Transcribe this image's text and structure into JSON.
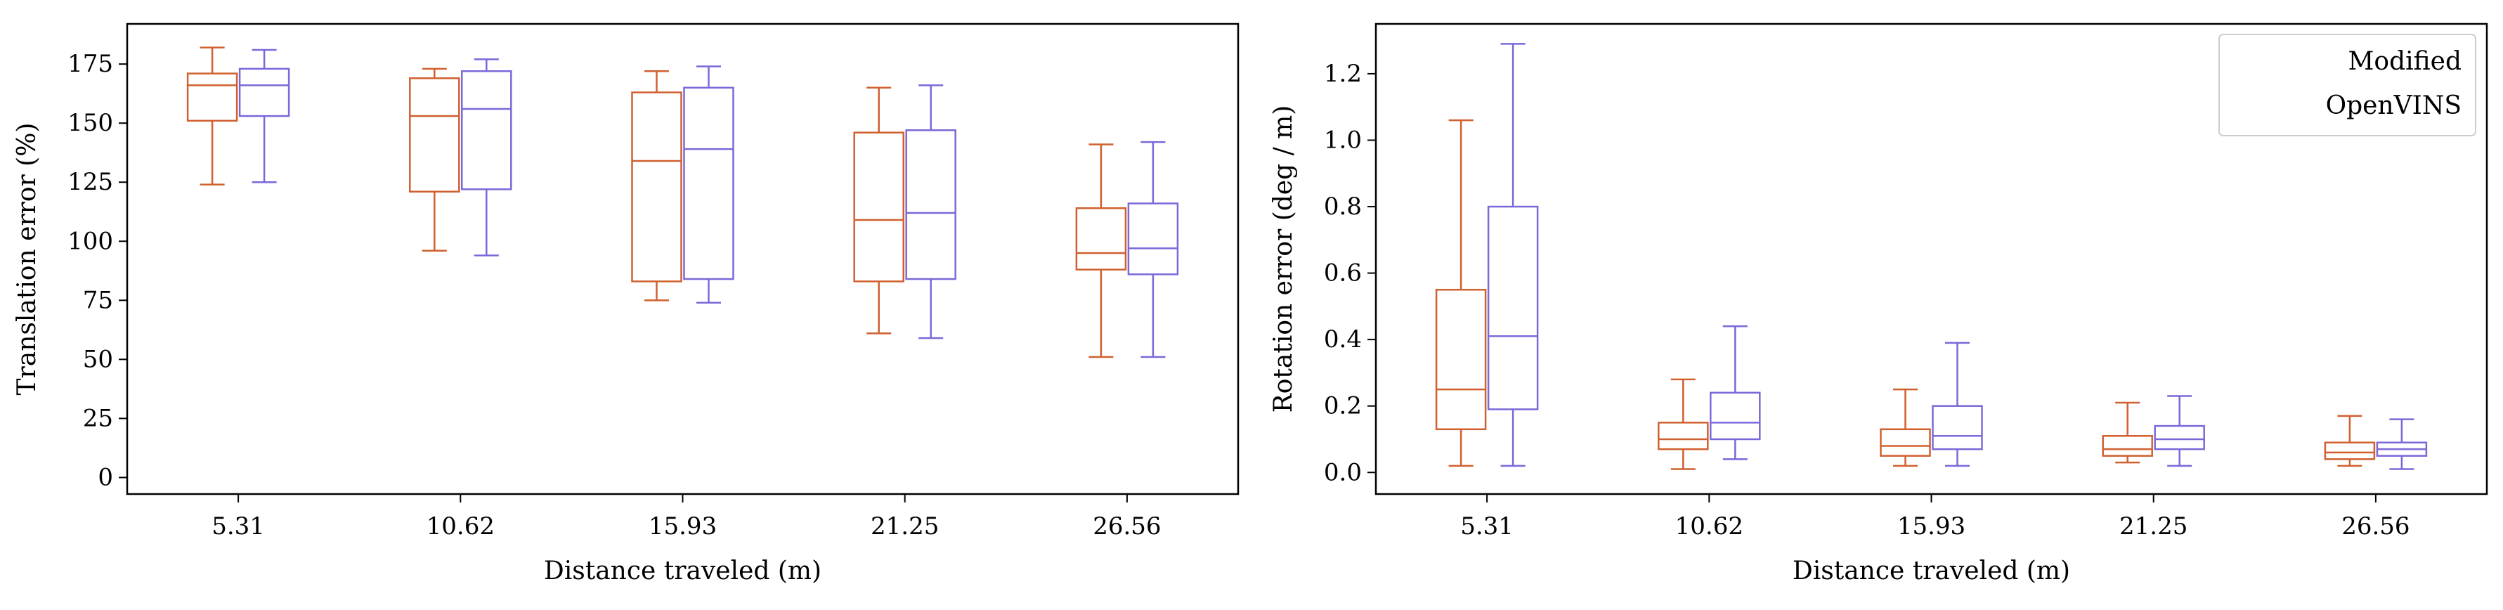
{
  "colors": {
    "modified": "#d0602f",
    "openvins": "#7b68d9",
    "axis": "#000000",
    "legend_border": "#cccccc"
  },
  "chart_data": [
    {
      "type": "box",
      "xlabel": "Distance traveled (m)",
      "ylabel": "Translation error (%)",
      "categories": [
        "5.31",
        "10.62",
        "15.93",
        "21.25",
        "26.56"
      ],
      "ylim": [
        -7,
        192
      ],
      "yticks": [
        0,
        25,
        50,
        75,
        100,
        125,
        150,
        175
      ],
      "ytick_labels": [
        "0",
        "25",
        "50",
        "75",
        "100",
        "125",
        "150",
        "175"
      ],
      "grid": false,
      "legend": null,
      "series": [
        {
          "name": "Modified",
          "color_key": "modified",
          "boxes": [
            {
              "whislo": 124,
              "q1": 151,
              "med": 166,
              "q3": 171,
              "whishi": 182
            },
            {
              "whislo": 96,
              "q1": 121,
              "med": 153,
              "q3": 169,
              "whishi": 173
            },
            {
              "whislo": 75,
              "q1": 83,
              "med": 134,
              "q3": 163,
              "whishi": 172
            },
            {
              "whislo": 61,
              "q1": 83,
              "med": 109,
              "q3": 146,
              "whishi": 165
            },
            {
              "whislo": 51,
              "q1": 88,
              "med": 95,
              "q3": 114,
              "whishi": 141
            }
          ]
        },
        {
          "name": "OpenVINS",
          "color_key": "openvins",
          "boxes": [
            {
              "whislo": 125,
              "q1": 153,
              "med": 166,
              "q3": 173,
              "whishi": 181
            },
            {
              "whislo": 94,
              "q1": 122,
              "med": 156,
              "q3": 172,
              "whishi": 177
            },
            {
              "whislo": 74,
              "q1": 84,
              "med": 139,
              "q3": 165,
              "whishi": 174
            },
            {
              "whislo": 59,
              "q1": 84,
              "med": 112,
              "q3": 147,
              "whishi": 166
            },
            {
              "whislo": 51,
              "q1": 86,
              "med": 97,
              "q3": 116,
              "whishi": 142
            }
          ]
        }
      ]
    },
    {
      "type": "box",
      "xlabel": "Distance traveled (m)",
      "ylabel": "Rotation error  (deg / m)",
      "categories": [
        "5.31",
        "10.62",
        "15.93",
        "21.25",
        "26.56"
      ],
      "ylim": [
        -0.065,
        1.35
      ],
      "yticks": [
        0.0,
        0.2,
        0.4,
        0.6,
        0.8,
        1.0,
        1.2
      ],
      "ytick_labels": [
        "0.0",
        "0.2",
        "0.4",
        "0.6",
        "0.8",
        "1.0",
        "1.2"
      ],
      "grid": false,
      "legend": "top-right",
      "series": [
        {
          "name": "Modified",
          "color_key": "modified",
          "boxes": [
            {
              "whislo": 0.02,
              "q1": 0.13,
              "med": 0.25,
              "q3": 0.55,
              "whishi": 1.06
            },
            {
              "whislo": 0.01,
              "q1": 0.07,
              "med": 0.1,
              "q3": 0.15,
              "whishi": 0.28
            },
            {
              "whislo": 0.02,
              "q1": 0.05,
              "med": 0.08,
              "q3": 0.13,
              "whishi": 0.25
            },
            {
              "whislo": 0.03,
              "q1": 0.05,
              "med": 0.07,
              "q3": 0.11,
              "whishi": 0.21
            },
            {
              "whislo": 0.02,
              "q1": 0.04,
              "med": 0.06,
              "q3": 0.09,
              "whishi": 0.17
            }
          ]
        },
        {
          "name": "OpenVINS",
          "color_key": "openvins",
          "boxes": [
            {
              "whislo": 0.02,
              "q1": 0.19,
              "med": 0.41,
              "q3": 0.8,
              "whishi": 1.29
            },
            {
              "whislo": 0.04,
              "q1": 0.1,
              "med": 0.15,
              "q3": 0.24,
              "whishi": 0.44
            },
            {
              "whislo": 0.02,
              "q1": 0.07,
              "med": 0.11,
              "q3": 0.2,
              "whishi": 0.39
            },
            {
              "whislo": 0.02,
              "q1": 0.07,
              "med": 0.1,
              "q3": 0.14,
              "whishi": 0.23
            },
            {
              "whislo": 0.01,
              "q1": 0.05,
              "med": 0.07,
              "q3": 0.09,
              "whishi": 0.16
            }
          ]
        }
      ]
    }
  ]
}
